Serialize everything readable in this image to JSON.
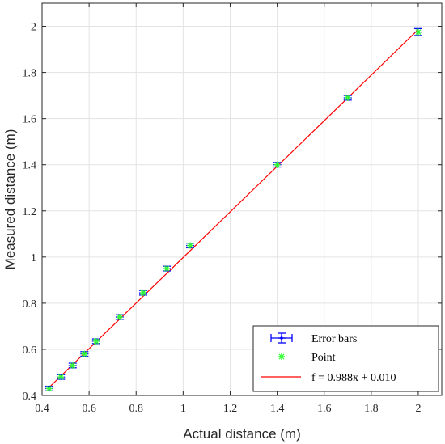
{
  "chart_data": {
    "type": "scatter",
    "xlabel": "Actual distance (m)",
    "ylabel": "Measured distance (m)",
    "xlim": [
      0.4,
      2.1
    ],
    "ylim": [
      0.4,
      2.1
    ],
    "xticks": [
      "0.4",
      "0.6",
      "0.8",
      "1",
      "1.2",
      "1.4",
      "1.6",
      "1.8",
      "2"
    ],
    "yticks": [
      "0.4",
      "0.6",
      "0.8",
      "1",
      "1.2",
      "1.4",
      "1.6",
      "1.8",
      "2"
    ],
    "grid": true,
    "legend_position": "bottom-right",
    "series": [
      {
        "name": "Error bars",
        "kind": "errorbar",
        "color": "#0000ff",
        "x": [
          0.43,
          0.48,
          0.53,
          0.58,
          0.63,
          0.73,
          0.83,
          0.93,
          1.03,
          1.4,
          1.7,
          2.0
        ],
        "y": [
          0.43,
          0.48,
          0.53,
          0.58,
          0.635,
          0.74,
          0.845,
          0.95,
          1.05,
          1.4,
          1.69,
          1.975
        ],
        "yerr": [
          0.01,
          0.01,
          0.01,
          0.01,
          0.01,
          0.01,
          0.01,
          0.01,
          0.01,
          0.01,
          0.01,
          0.015
        ]
      },
      {
        "name": "Point",
        "kind": "scatter",
        "marker": "asterisk",
        "color": "#33ff33",
        "x": [
          0.43,
          0.48,
          0.53,
          0.58,
          0.63,
          0.73,
          0.83,
          0.93,
          1.03,
          1.4,
          1.7,
          2.0
        ],
        "y": [
          0.43,
          0.48,
          0.53,
          0.58,
          0.635,
          0.74,
          0.845,
          0.95,
          1.05,
          1.4,
          1.69,
          1.975
        ]
      },
      {
        "name": "f = 0.988x + 0.010",
        "kind": "line",
        "color": "#ff0000",
        "slope": 0.988,
        "intercept": 0.01,
        "x_range": [
          0.43,
          2.0
        ]
      }
    ]
  }
}
